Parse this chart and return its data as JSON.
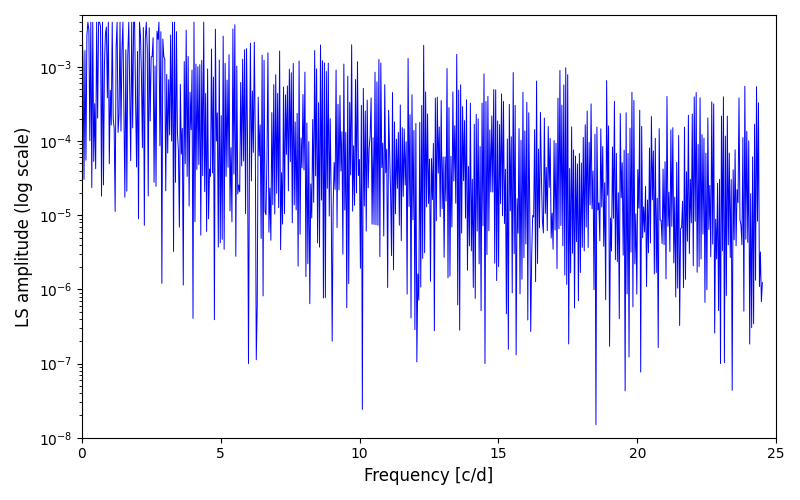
{
  "xlabel": "Frequency [c/d]",
  "ylabel": "LS amplitude (log scale)",
  "xlim": [
    0,
    25
  ],
  "ylim": [
    1e-08,
    0.005
  ],
  "line_color": "#0000ff",
  "linewidth": 0.7,
  "figsize": [
    8.0,
    5.0
  ],
  "dpi": 100,
  "seed": 12345,
  "n_points": 700,
  "freq_max": 24.5
}
